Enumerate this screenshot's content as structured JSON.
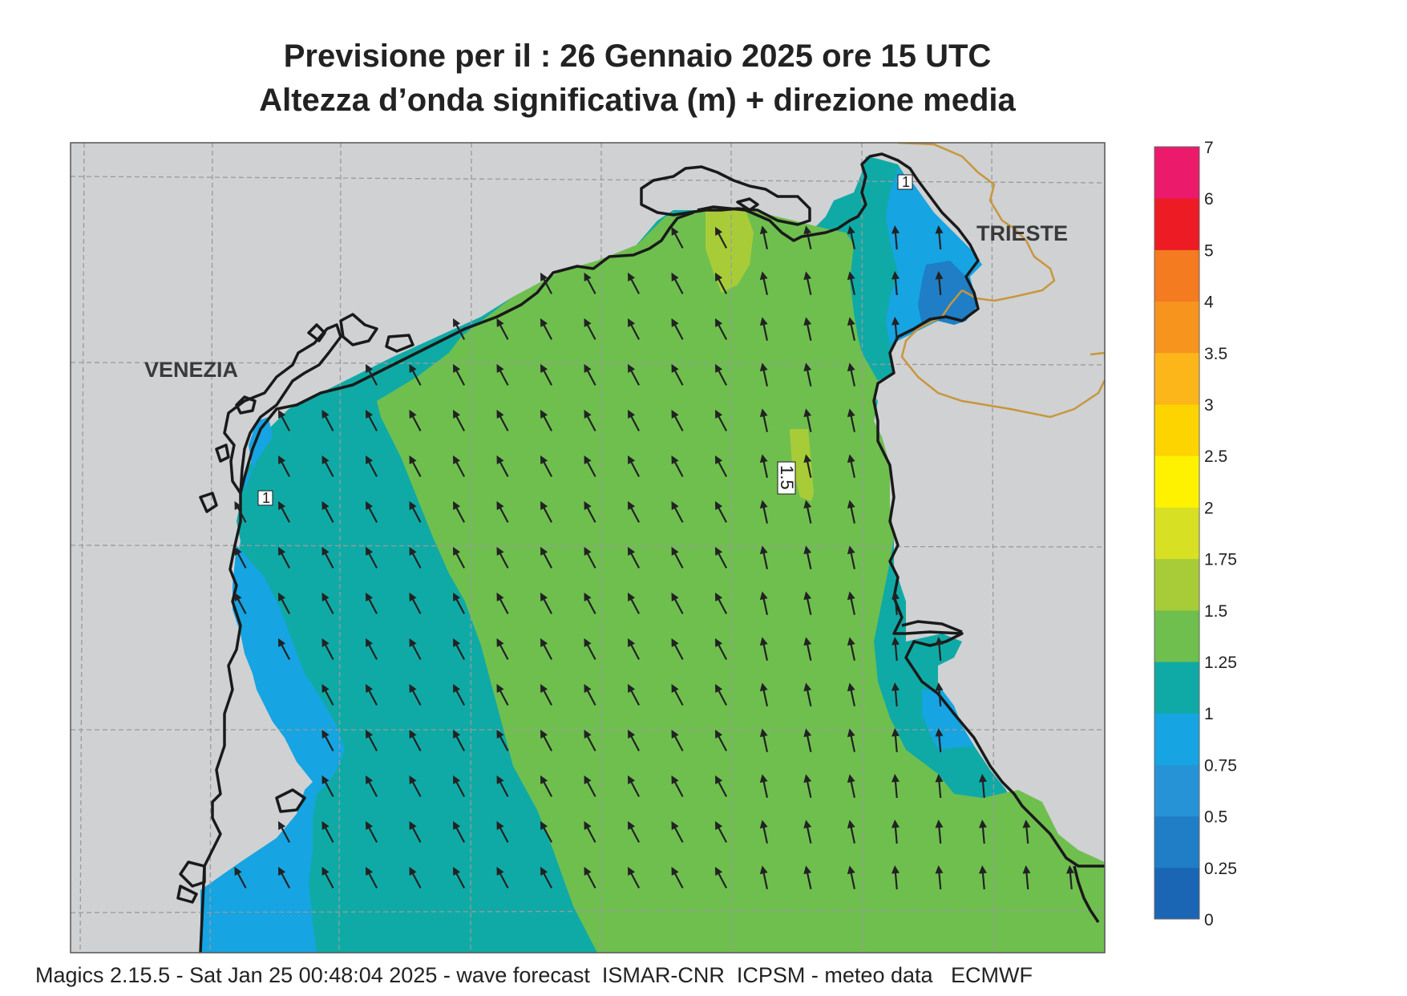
{
  "header": {
    "title_line1": "Previsione per il  :  26  Gennaio  2025   ore 15 UTC",
    "title_line2": "Altezza d’onda significativa (m) + direzione media"
  },
  "map": {
    "city_labels": [
      "VENEZIA",
      "TRIESTE"
    ],
    "contour_labels": [
      "1",
      "1",
      "1.5"
    ],
    "land_color": "#cfd1d3",
    "coast_color": "#1a1a1a",
    "border_color": "#c8963c",
    "grid_color": "#9a9a9a"
  },
  "legend": {
    "ticks": [
      "0",
      "0.25",
      "0.5",
      "0.75",
      "1",
      "1.25",
      "1.5",
      "1.75",
      "2",
      "2.5",
      "3",
      "3.5",
      "4",
      "5",
      "6",
      "7"
    ],
    "colors": [
      "#1a66b4",
      "#1f7ec6",
      "#2793d7",
      "#16a4e2",
      "#10aaa6",
      "#6fbf4f",
      "#a8cc38",
      "#d8e024",
      "#fff200",
      "#fdd400",
      "#fcb619",
      "#f7941d",
      "#f47b20",
      "#ed1c24",
      "#ec1a6b"
    ]
  },
  "footer": {
    "text": "Magics 2.15.5 - Sat Jan 25 00:48:04 2025 - wave forecast  ISMAR-CNR  ICPSM - meteo data   ECMWF"
  }
}
